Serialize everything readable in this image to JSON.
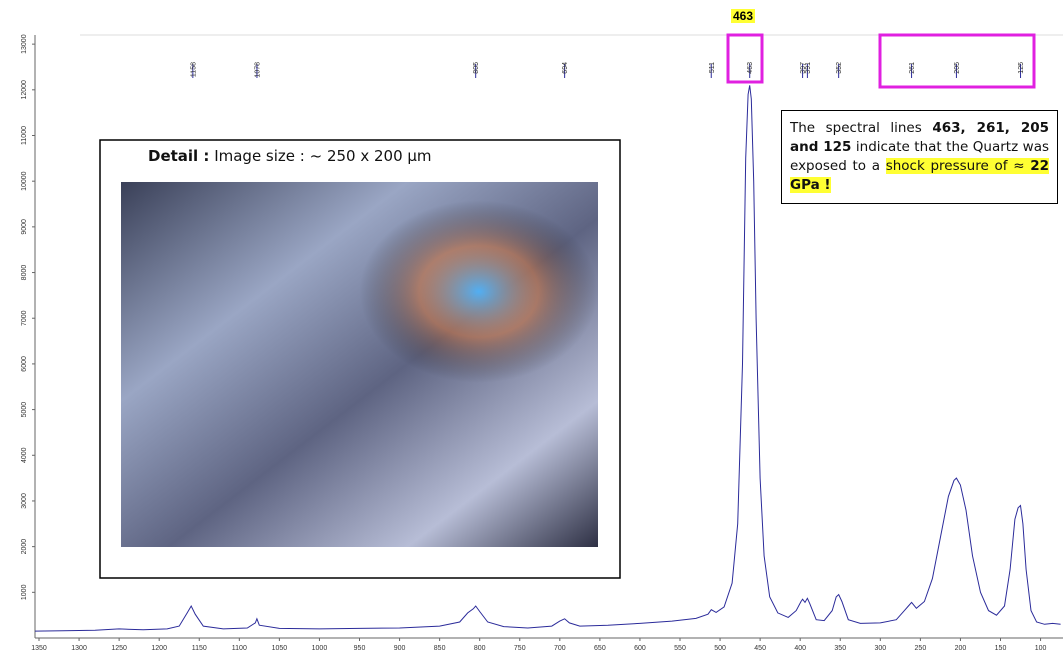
{
  "chart_data": {
    "type": "line",
    "xlim": [
      1355,
      72
    ],
    "ylim": [
      0,
      13200
    ],
    "xticks": [
      1350,
      1300,
      1250,
      1200,
      1150,
      1100,
      1050,
      1000,
      950,
      900,
      850,
      800,
      750,
      700,
      650,
      600,
      550,
      500,
      450,
      400,
      350,
      300,
      250,
      200,
      150,
      100
    ],
    "yticks": [
      1000,
      2000,
      3000,
      4000,
      5000,
      6000,
      7000,
      8000,
      9000,
      10000,
      11000,
      12000,
      13000
    ],
    "x": [
      1355,
      1320,
      1280,
      1250,
      1220,
      1190,
      1175,
      1165,
      1160,
      1155,
      1145,
      1120,
      1090,
      1080,
      1078,
      1075,
      1050,
      1000,
      950,
      900,
      850,
      825,
      815,
      808,
      805,
      800,
      790,
      770,
      740,
      710,
      700,
      694,
      688,
      675,
      640,
      600,
      560,
      530,
      515,
      511,
      505,
      495,
      485,
      478,
      472,
      468,
      465,
      463,
      461,
      458,
      455,
      450,
      445,
      438,
      428,
      415,
      405,
      399,
      397,
      394,
      391,
      388,
      380,
      370,
      360,
      355,
      352,
      348,
      340,
      325,
      300,
      280,
      270,
      265,
      261,
      255,
      245,
      235,
      225,
      215,
      208,
      205,
      200,
      193,
      185,
      175,
      165,
      155,
      145,
      138,
      132,
      128,
      125,
      122,
      118,
      112,
      105,
      95,
      85,
      75
    ],
    "series": [
      {
        "color": "#2b2b9a",
        "values": [
          150,
          160,
          170,
          200,
          180,
          200,
          260,
          550,
          700,
          520,
          260,
          200,
          220,
          330,
          420,
          280,
          210,
          200,
          210,
          220,
          260,
          350,
          550,
          640,
          700,
          580,
          350,
          250,
          220,
          260,
          370,
          420,
          330,
          260,
          280,
          320,
          370,
          430,
          520,
          620,
          560,
          680,
          1200,
          2500,
          6000,
          10500,
          11900,
          12100,
          11800,
          10000,
          7000,
          3500,
          1800,
          900,
          550,
          450,
          600,
          800,
          850,
          780,
          870,
          750,
          400,
          380,
          600,
          900,
          950,
          800,
          400,
          320,
          330,
          400,
          600,
          700,
          780,
          650,
          800,
          1300,
          2200,
          3100,
          3450,
          3500,
          3350,
          2800,
          1800,
          1000,
          600,
          500,
          700,
          1500,
          2600,
          2850,
          2900,
          2500,
          1500,
          600,
          350,
          300,
          320,
          300
        ]
      }
    ],
    "peak_markers": [
      1158,
      1078,
      805,
      694,
      511,
      463,
      397,
      391,
      352,
      261,
      205,
      125
    ],
    "highlight_label": 463,
    "inset_title": {
      "bold": "Detail :",
      "rest": " Image size :  ~ 250 x 200 µm"
    },
    "annotation": [
      {
        "text": "The spectral lines ",
        "bold": false,
        "highlight": false
      },
      {
        "text": "463, 261, 205 and 125",
        "bold": true,
        "highlight": false
      },
      {
        "text": " indicate that the Quartz was exposed to a ",
        "bold": false,
        "highlight": false
      },
      {
        "text": "shock pressure of ≈ ",
        "bold": false,
        "highlight": true
      },
      {
        "text": "22 GPa !",
        "bold": true,
        "highlight": true
      }
    ]
  }
}
